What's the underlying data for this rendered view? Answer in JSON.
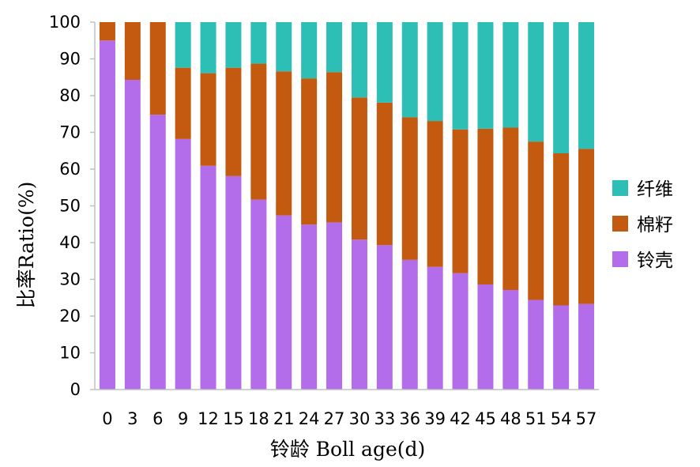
{
  "chart_data": {
    "type": "bar",
    "stacked": true,
    "title": "",
    "xlabel": "铃龄 Boll age(d)",
    "ylabel": "比率Ratio(%)",
    "ylim": [
      0,
      100
    ],
    "yticks": [
      0,
      10,
      20,
      30,
      40,
      50,
      60,
      70,
      80,
      90,
      100
    ],
    "grid": false,
    "legend_position": "right",
    "categories": [
      "0",
      "3",
      "6",
      "9",
      "12",
      "15",
      "18",
      "21",
      "24",
      "27",
      "30",
      "33",
      "36",
      "39",
      "42",
      "45",
      "48",
      "51",
      "54",
      "57"
    ],
    "series": [
      {
        "name": "铃壳",
        "color": "#b36cea",
        "values": [
          95.0,
          84.3,
          74.8,
          68.2,
          60.9,
          58.1,
          51.7,
          47.4,
          44.9,
          45.5,
          40.8,
          39.3,
          35.3,
          33.4,
          31.7,
          28.6,
          27.1,
          24.4,
          22.9,
          23.3
        ]
      },
      {
        "name": "棉籽",
        "color": "#c45a10",
        "values": [
          5.0,
          15.7,
          25.2,
          19.4,
          25.2,
          29.5,
          37.0,
          39.2,
          39.8,
          40.9,
          38.7,
          38.8,
          38.8,
          39.7,
          39.1,
          42.4,
          44.2,
          43.1,
          41.4,
          42.2
        ]
      },
      {
        "name": "纤维",
        "color": "#2dbfb5",
        "values": [
          0.0,
          0.0,
          0.0,
          12.4,
          13.9,
          12.4,
          11.3,
          13.4,
          15.3,
          13.6,
          20.5,
          21.9,
          25.9,
          26.9,
          29.2,
          29.0,
          28.7,
          32.5,
          35.7,
          34.5
        ]
      }
    ],
    "legend_order": [
      "纤维",
      "棉籽",
      "铃壳"
    ]
  }
}
